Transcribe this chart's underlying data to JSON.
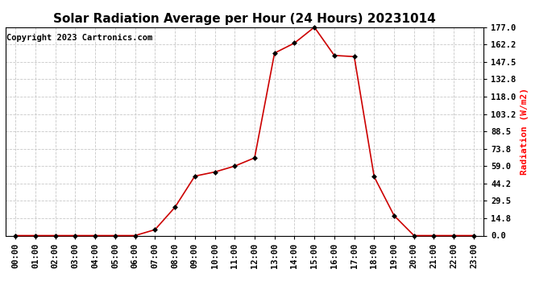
{
  "title": "Solar Radiation Average per Hour (24 Hours) 20231014",
  "copyright_text": "Copyright 2023 Cartronics.com",
  "ylabel": "Radiation (W/m2)",
  "ylabel_color": "#ff0000",
  "background_color": "#ffffff",
  "line_color": "#cc0000",
  "marker_color": "#000000",
  "hours": [
    0,
    1,
    2,
    3,
    4,
    5,
    6,
    7,
    8,
    9,
    10,
    11,
    12,
    13,
    14,
    15,
    16,
    17,
    18,
    19,
    20,
    21,
    22,
    23
  ],
  "values": [
    0.0,
    0.0,
    0.0,
    0.0,
    0.0,
    0.0,
    0.0,
    5.0,
    24.0,
    50.5,
    54.0,
    59.0,
    66.0,
    155.0,
    163.5,
    177.0,
    153.0,
    152.0,
    50.0,
    17.0,
    0.0,
    0.0,
    0.0,
    0.0
  ],
  "yticks": [
    0.0,
    14.8,
    29.5,
    44.2,
    59.0,
    73.8,
    88.5,
    103.2,
    118.0,
    132.8,
    147.5,
    162.2,
    177.0
  ],
  "ylim": [
    0.0,
    177.0
  ],
  "grid_color": "#c8c8c8",
  "title_fontsize": 11,
  "tick_label_fontsize": 7.5,
  "copyright_fontsize": 7.5,
  "ylabel_fontsize": 8
}
